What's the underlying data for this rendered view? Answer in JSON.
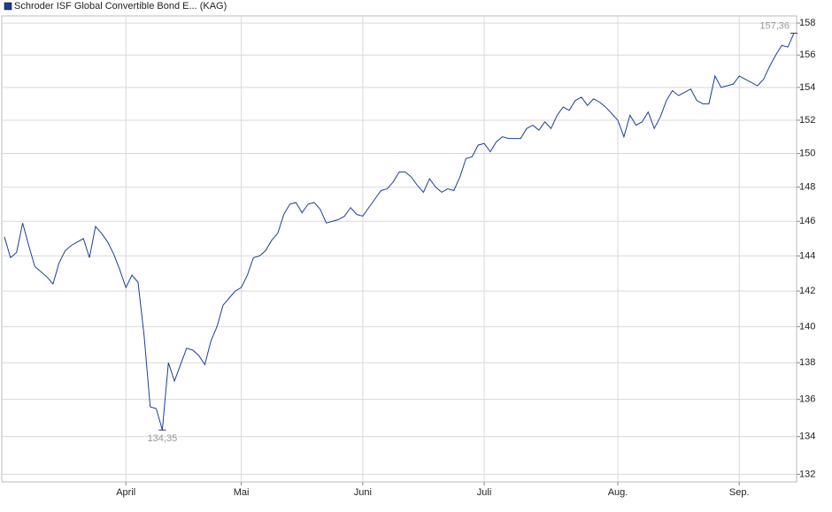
{
  "chart_data": {
    "type": "line",
    "categories": [
      null,
      null,
      null,
      null,
      null,
      null,
      null,
      null,
      null,
      null,
      null,
      null,
      null,
      null,
      null,
      null,
      null,
      null,
      null,
      null,
      "April",
      null,
      null,
      null,
      null,
      null,
      null,
      null,
      null,
      null,
      null,
      null,
      null,
      null,
      null,
      null,
      null,
      null,
      null,
      "Mai",
      null,
      null,
      null,
      null,
      null,
      null,
      null,
      null,
      null,
      null,
      null,
      null,
      null,
      null,
      null,
      null,
      null,
      null,
      null,
      "Juni",
      null,
      null,
      null,
      null,
      null,
      null,
      null,
      null,
      null,
      null,
      null,
      null,
      null,
      null,
      null,
      null,
      null,
      null,
      null,
      "Juli",
      null,
      null,
      null,
      null,
      null,
      null,
      null,
      null,
      null,
      null,
      null,
      null,
      null,
      null,
      null,
      null,
      null,
      null,
      null,
      null,
      null,
      "Aug.",
      null,
      null,
      null,
      null,
      null,
      null,
      null,
      null,
      null,
      null,
      null,
      null,
      null,
      null,
      null,
      null,
      null,
      null,
      null,
      "Sep.",
      null,
      null,
      null,
      null,
      null,
      null,
      null,
      null,
      null
    ],
    "series": [
      {
        "name": "Schroder ISF Global Convertible Bond E... (KAG)",
        "color": "#1c3f94",
        "values": [
          145.1,
          143.9,
          144.2,
          145.9,
          144.6,
          143.4,
          143.1,
          142.8,
          142.4,
          143.6,
          144.3,
          144.6,
          144.8,
          145.0,
          143.9,
          145.7,
          145.3,
          144.8,
          144.1,
          143.2,
          142.2,
          142.9,
          142.5,
          139.5,
          135.6,
          135.5,
          134.35,
          138.0,
          137.0,
          137.9,
          138.8,
          138.7,
          138.4,
          137.9,
          139.2,
          140.0,
          141.2,
          141.6,
          142.0,
          142.2,
          142.9,
          143.9,
          144.0,
          144.3,
          144.9,
          145.3,
          146.4,
          147.0,
          147.1,
          146.5,
          147.0,
          147.1,
          146.7,
          145.9,
          146.0,
          146.1,
          146.3,
          146.8,
          146.4,
          146.3,
          146.8,
          147.3,
          147.8,
          147.9,
          148.3,
          148.9,
          148.9,
          148.6,
          148.1,
          147.7,
          148.5,
          148.0,
          147.7,
          147.9,
          147.8,
          148.6,
          149.7,
          149.8,
          150.5,
          150.6,
          150.1,
          150.7,
          151.0,
          150.9,
          150.9,
          150.9,
          151.5,
          151.7,
          151.4,
          151.9,
          151.5,
          152.3,
          152.8,
          152.6,
          153.2,
          153.4,
          152.9,
          153.3,
          153.1,
          152.8,
          152.4,
          152.0,
          151.0,
          152.3,
          151.7,
          151.9,
          152.5,
          151.5,
          152.2,
          153.2,
          153.8,
          153.5,
          153.7,
          153.9,
          153.2,
          153.0,
          153.0,
          154.7,
          154.0,
          154.1,
          154.2,
          154.7,
          154.5,
          154.3,
          154.1,
          154.5,
          155.3,
          156.0,
          156.6,
          156.5,
          157.36
        ],
        "value_labels": [
          null,
          null,
          null,
          null,
          null,
          null,
          null,
          null,
          null,
          null,
          null,
          null,
          null,
          null,
          null,
          null,
          null,
          null,
          null,
          null,
          null,
          null,
          null,
          null,
          null,
          null,
          "134,35",
          null,
          null,
          null,
          null,
          null,
          null,
          null,
          null,
          null,
          null,
          null,
          null,
          null,
          null,
          null,
          null,
          null,
          null,
          null,
          null,
          null,
          null,
          null,
          null,
          null,
          null,
          null,
          null,
          null,
          null,
          null,
          null,
          null,
          null,
          null,
          null,
          null,
          null,
          null,
          null,
          null,
          null,
          null,
          null,
          null,
          null,
          null,
          null,
          null,
          null,
          null,
          null,
          null,
          null,
          null,
          null,
          null,
          null,
          null,
          null,
          null,
          null,
          null,
          null,
          null,
          null,
          null,
          null,
          null,
          null,
          null,
          null,
          null,
          null,
          null,
          null,
          null,
          null,
          null,
          null,
          null,
          null,
          null,
          null,
          null,
          null,
          null,
          null,
          null,
          null,
          null,
          null,
          null,
          null,
          null,
          null,
          null,
          null,
          null,
          null,
          null,
          null,
          null,
          "157,36"
        ]
      }
    ],
    "ylim": [
      131.6,
      158.45
    ],
    "yticks": [
      132,
      134,
      136,
      138,
      140,
      142,
      144,
      146,
      148,
      150,
      152,
      154,
      156,
      158
    ],
    "log_scale": true,
    "grid": true
  }
}
